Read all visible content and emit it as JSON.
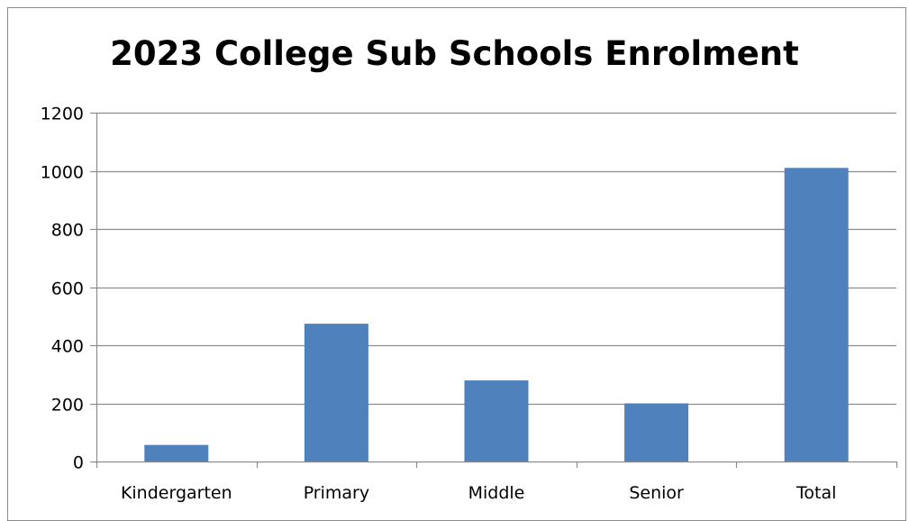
{
  "chart_data": {
    "type": "bar",
    "title": "2023 College Sub Schools Enrolment",
    "xlabel": "",
    "ylabel": "",
    "categories": [
      "Kindergarten",
      "Primary",
      "Middle",
      "Senior",
      "Total"
    ],
    "values": [
      57,
      474,
      279,
      200,
      1010
    ],
    "ylim": [
      0,
      1200
    ],
    "yticks": [
      0,
      200,
      400,
      600,
      800,
      1000,
      1200
    ],
    "grid": true,
    "legend": "none",
    "bar_color": "#4f81bd",
    "grid_color": "#8c8c8c"
  }
}
